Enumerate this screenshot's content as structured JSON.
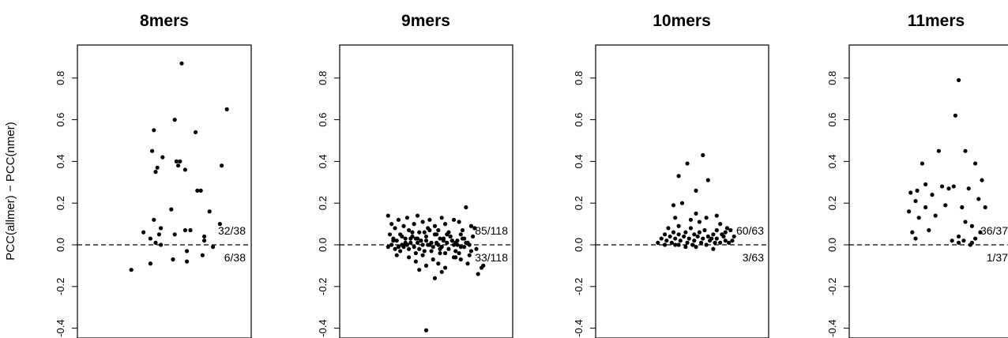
{
  "figure": {
    "ylabel": "PCC(allmer) − PCC(nmer)"
  },
  "chart_data": [
    {
      "type": "scatter",
      "title": "8mers",
      "ylabel": "PCC(allmer) − PCC(nmer)",
      "ylim": [
        -0.45,
        1.0
      ],
      "yticks": [
        "-0.4",
        "-0.2",
        "0.0",
        "0.2",
        "0.4",
        "0.6",
        "0.8"
      ],
      "yticks_values": [
        -0.4,
        -0.2,
        0.0,
        0.2,
        0.4,
        0.6,
        0.8
      ],
      "reference_line": 0.0,
      "above_label": "32/38",
      "below_label": "6/38",
      "x": [
        0.6,
        0.86,
        0.44,
        0.56,
        0.68,
        0.43,
        0.57,
        0.46,
        0.62,
        0.58,
        0.45,
        0.59,
        0.49,
        0.69,
        0.83,
        0.71,
        0.54,
        0.44,
        0.76,
        0.82,
        0.48,
        0.65,
        0.38,
        0.47,
        0.62,
        0.73,
        0.42,
        0.56,
        0.73,
        0.45,
        0.48,
        0.63,
        0.78,
        0.72,
        0.55,
        0.63,
        0.42,
        0.31
      ],
      "y": [
        0.87,
        0.65,
        0.55,
        0.6,
        0.54,
        0.45,
        0.4,
        0.37,
        0.36,
        0.38,
        0.35,
        0.4,
        0.42,
        0.26,
        0.38,
        0.26,
        0.17,
        0.12,
        0.16,
        0.1,
        0.08,
        0.07,
        0.06,
        0.05,
        0.07,
        0.04,
        0.03,
        0.05,
        0.02,
        0.01,
        0.0,
        -0.03,
        -0.01,
        -0.05,
        -0.07,
        -0.08,
        -0.09,
        -0.12
      ]
    },
    {
      "type": "scatter",
      "title": "9mers",
      "ylim": [
        -0.45,
        1.0
      ],
      "yticks": [
        "-0.4",
        "-0.2",
        "0.0",
        "0.2",
        "0.4",
        "0.6",
        "0.8"
      ],
      "yticks_values": [
        -0.4,
        -0.2,
        0.0,
        0.2,
        0.4,
        0.6,
        0.8
      ],
      "reference_line": 0.0,
      "above_label": "85/118",
      "below_label": "33/118",
      "x": [
        0.28,
        0.34,
        0.39,
        0.45,
        0.52,
        0.59,
        0.66,
        0.73,
        0.3,
        0.37,
        0.43,
        0.48,
        0.55,
        0.61,
        0.69,
        0.76,
        0.32,
        0.4,
        0.46,
        0.51,
        0.57,
        0.63,
        0.71,
        0.78,
        0.29,
        0.35,
        0.42,
        0.49,
        0.56,
        0.64,
        0.7,
        0.77,
        0.31,
        0.38,
        0.44,
        0.5,
        0.58,
        0.65,
        0.72,
        0.33,
        0.41,
        0.47,
        0.53,
        0.6,
        0.67,
        0.74,
        0.36,
        0.45,
        0.52,
        0.62,
        0.68,
        0.3,
        0.39,
        0.48,
        0.57,
        0.66,
        0.75,
        0.34,
        0.43,
        0.51,
        0.59,
        0.7,
        0.28,
        0.37,
        0.46,
        0.54,
        0.63,
        0.72,
        0.79,
        0.32,
        0.4,
        0.49,
        0.58,
        0.67,
        0.76,
        0.35,
        0.44,
        0.53,
        0.61,
        0.69,
        0.31,
        0.41,
        0.5,
        0.6,
        0.68,
        0.38,
        0.47,
        0.56,
        0.65,
        0.73,
        0.36,
        0.45,
        0.55,
        0.64,
        0.71,
        0.42,
        0.52,
        0.62,
        0.33,
        0.48,
        0.58,
        0.67,
        0.75,
        0.4,
        0.54,
        0.66,
        0.44,
        0.57,
        0.7,
        0.5,
        0.61,
        0.74,
        0.46,
        0.59,
        0.82,
        0.8,
        0.83,
        0.55
      ],
      "y": [
        0.14,
        0.12,
        0.13,
        0.14,
        0.12,
        0.13,
        0.12,
        0.18,
        0.1,
        0.09,
        0.1,
        0.11,
        0.09,
        0.1,
        0.11,
        0.09,
        0.08,
        0.07,
        0.06,
        0.08,
        0.07,
        0.06,
        0.07,
        0.08,
        0.05,
        0.05,
        0.04,
        0.06,
        0.05,
        0.04,
        0.05,
        0.04,
        0.03,
        0.03,
        0.03,
        0.02,
        0.03,
        0.02,
        0.03,
        0.02,
        0.01,
        0.02,
        0.01,
        0.02,
        0.01,
        0.01,
        0.0,
        0.01,
        0.0,
        0.01,
        0.0,
        0.0,
        0.0,
        0.0,
        0.0,
        0.0,
        0.0,
        -0.01,
        -0.01,
        0.0,
        -0.01,
        -0.01,
        -0.01,
        -0.01,
        -0.02,
        -0.01,
        -0.02,
        -0.01,
        -0.02,
        -0.02,
        -0.02,
        -0.03,
        -0.02,
        -0.03,
        -0.03,
        -0.03,
        -0.04,
        -0.03,
        -0.04,
        -0.04,
        0.02,
        0.03,
        0.04,
        0.03,
        0.02,
        0.01,
        0.02,
        0.01,
        0.02,
        0.01,
        0.04,
        0.03,
        0.05,
        0.04,
        0.03,
        0.06,
        0.07,
        0.05,
        -0.05,
        -0.05,
        -0.04,
        -0.06,
        -0.05,
        -0.06,
        -0.07,
        -0.06,
        -0.08,
        -0.09,
        -0.07,
        -0.1,
        -0.11,
        -0.09,
        -0.12,
        -0.13,
        -0.11,
        -0.14,
        -0.1,
        -0.16
      ],
      "extra_points": {
        "x": [
          0.5
        ],
        "y": [
          -0.41
        ]
      }
    },
    {
      "type": "scatter",
      "title": "10mers",
      "ylim": [
        -0.45,
        1.0
      ],
      "yticks": [
        "-0.4",
        "-0.2",
        "0.0",
        "0.2",
        "0.4",
        "0.6",
        "0.8"
      ],
      "yticks_values": [
        -0.4,
        -0.2,
        0.0,
        0.2,
        0.4,
        0.6,
        0.8
      ],
      "reference_line": 0.0,
      "above_label": "60/63",
      "below_label": "3/63",
      "x": [
        0.62,
        0.53,
        0.48,
        0.65,
        0.58,
        0.5,
        0.45,
        0.58,
        0.7,
        0.46,
        0.64,
        0.55,
        0.6,
        0.72,
        0.48,
        0.76,
        0.42,
        0.55,
        0.63,
        0.7,
        0.78,
        0.45,
        0.52,
        0.6,
        0.68,
        0.75,
        0.4,
        0.48,
        0.57,
        0.65,
        0.73,
        0.8,
        0.43,
        0.51,
        0.59,
        0.67,
        0.74,
        0.38,
        0.46,
        0.54,
        0.62,
        0.7,
        0.79,
        0.41,
        0.49,
        0.57,
        0.66,
        0.75,
        0.36,
        0.44,
        0.53,
        0.61,
        0.69,
        0.77,
        0.4,
        0.48,
        0.56,
        0.64,
        0.72,
        0.46,
        0.58,
        0.68,
        0.52
      ],
      "y": [
        0.43,
        0.39,
        0.33,
        0.31,
        0.26,
        0.2,
        0.19,
        0.15,
        0.14,
        0.13,
        0.13,
        0.12,
        0.11,
        0.1,
        0.09,
        0.08,
        0.08,
        0.08,
        0.07,
        0.07,
        0.07,
        0.06,
        0.06,
        0.06,
        0.05,
        0.06,
        0.05,
        0.05,
        0.05,
        0.04,
        0.05,
        0.04,
        0.04,
        0.04,
        0.04,
        0.03,
        0.04,
        0.03,
        0.03,
        0.03,
        0.03,
        0.03,
        0.02,
        0.02,
        0.02,
        0.02,
        0.02,
        0.02,
        0.01,
        0.01,
        0.01,
        0.01,
        0.01,
        0.01,
        0.0,
        0.0,
        0.0,
        0.0,
        0.01,
        0.0,
        -0.01,
        -0.02,
        -0.01
      ]
    },
    {
      "type": "scatter",
      "title": "11mers",
      "ylim": [
        -0.45,
        1.0
      ],
      "yticks": [
        "-0.4",
        "-0.2",
        "0.0",
        "0.2",
        "0.4",
        "0.6",
        "0.8"
      ],
      "yticks_values": [
        -0.4,
        -0.2,
        0.0,
        0.2,
        0.4,
        0.6,
        0.8
      ],
      "reference_line": 0.0,
      "above_label": "36/37",
      "below_label": "1/37",
      "x": [
        0.66,
        0.64,
        0.54,
        0.7,
        0.44,
        0.76,
        0.8,
        0.46,
        0.41,
        0.56,
        0.63,
        0.6,
        0.72,
        0.37,
        0.5,
        0.78,
        0.4,
        0.58,
        0.68,
        0.46,
        0.36,
        0.52,
        0.82,
        0.7,
        0.42,
        0.74,
        0.38,
        0.79,
        0.48,
        0.66,
        0.76,
        0.4,
        0.69,
        0.62,
        0.74,
        0.66,
        0.73
      ],
      "y": [
        0.79,
        0.62,
        0.45,
        0.45,
        0.39,
        0.39,
        0.31,
        0.29,
        0.26,
        0.28,
        0.28,
        0.27,
        0.27,
        0.25,
        0.24,
        0.22,
        0.21,
        0.19,
        0.18,
        0.18,
        0.16,
        0.14,
        0.18,
        0.11,
        0.13,
        0.09,
        0.06,
        0.06,
        0.07,
        0.04,
        0.03,
        0.03,
        0.02,
        0.02,
        0.01,
        0.01,
        0.0
      ]
    }
  ]
}
